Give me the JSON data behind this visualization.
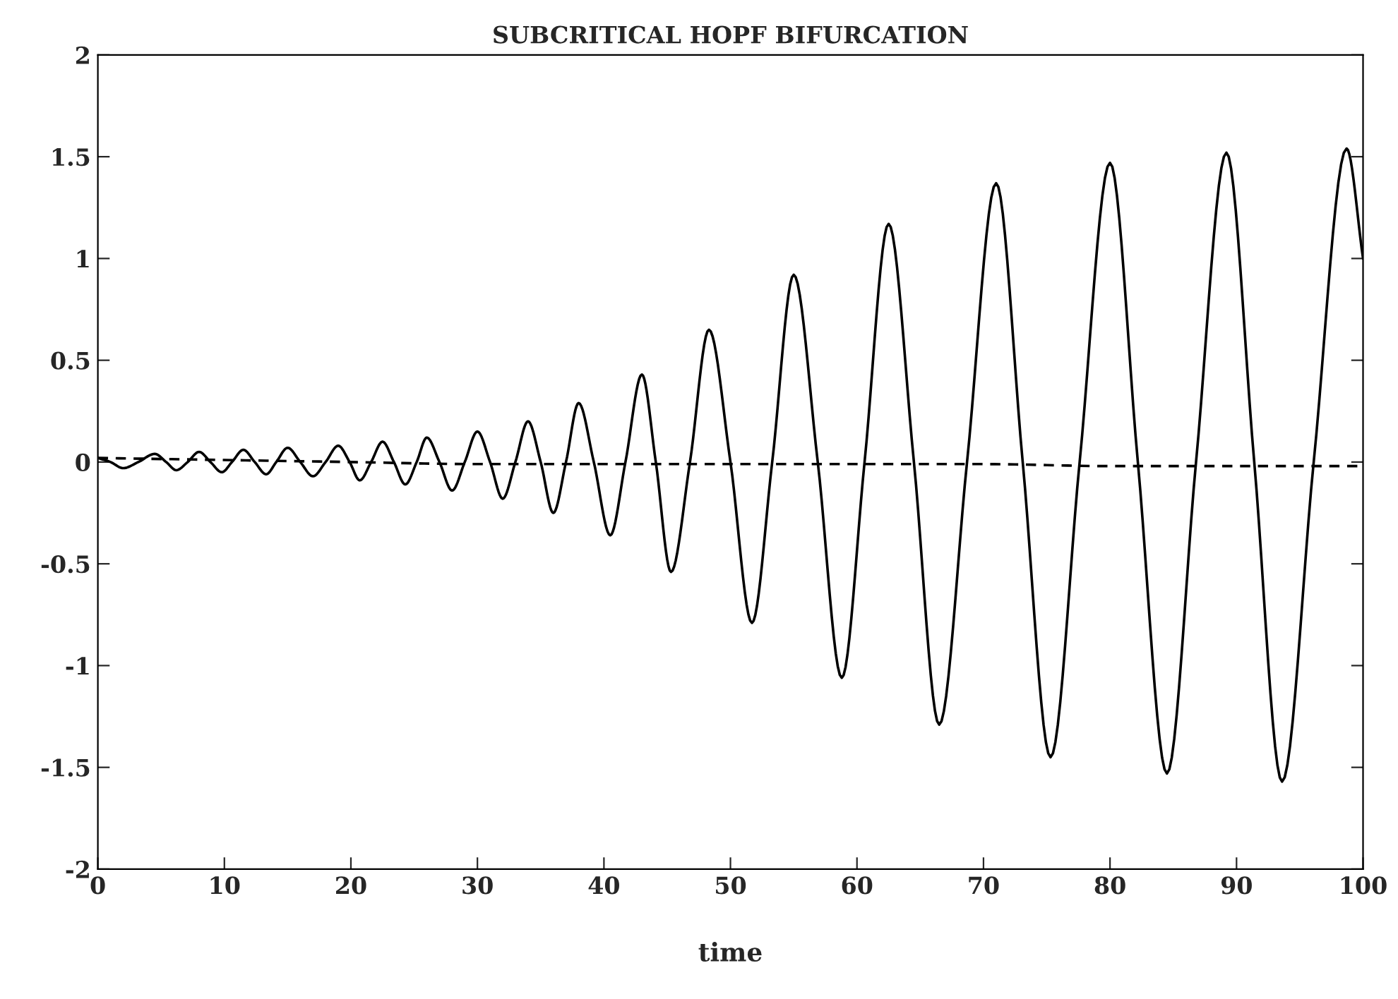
{
  "chart_data": {
    "type": "line",
    "title": "SUBCRITICAL HOPF BIFURCATION",
    "xlabel": "time",
    "xlim": [
      0,
      100
    ],
    "xticks": [
      0,
      10,
      20,
      30,
      40,
      50,
      60,
      70,
      80,
      90,
      100
    ],
    "ylim": [
      -2,
      2
    ],
    "yticks": [
      -2,
      -1.5,
      -1,
      -0.5,
      0,
      0.5,
      1,
      1.5,
      2
    ],
    "grid": false,
    "legend": false,
    "marker": "none",
    "series": [
      {
        "color": "#000000",
        "line_style": "solid",
        "x": [
          0,
          1,
          2,
          3.2,
          4.5,
          5.4,
          6.2,
          7.1,
          8,
          8.9,
          9.8,
          10.6,
          11.5,
          12.4,
          13.3,
          14.1,
          15,
          16,
          17,
          18,
          19,
          19.9,
          20.7,
          21.6,
          22.5,
          23.4,
          24.3,
          25.2,
          26,
          27,
          28,
          29,
          30,
          31,
          32,
          33,
          34,
          35,
          36,
          37,
          38,
          39.2,
          40.5,
          41.7,
          43,
          44.1,
          45.3,
          46.8,
          48.3,
          50,
          51.7,
          53.3,
          55,
          56.9,
          58.8,
          60.6,
          62.5,
          64.5,
          66.5,
          68.7,
          71,
          73.1,
          75.3,
          77.6,
          80,
          82.2,
          84.5,
          86.8,
          89.2,
          91.4,
          93.6,
          96.1,
          98.7,
          100
        ],
        "values": [
          0.02,
          0,
          -0.03,
          0,
          0.04,
          0,
          -0.04,
          0,
          0.05,
          0,
          -0.05,
          0,
          0.06,
          0,
          -0.06,
          0,
          0.07,
          0,
          -0.07,
          0,
          0.08,
          0,
          -0.09,
          0,
          0.1,
          0,
          -0.11,
          0,
          0.12,
          0,
          -0.14,
          0,
          0.15,
          0,
          -0.18,
          0,
          0.2,
          0,
          -0.25,
          0,
          0.29,
          0,
          -0.36,
          0,
          0.43,
          0,
          -0.54,
          0,
          0.65,
          0,
          -0.79,
          0,
          0.92,
          0,
          -1.06,
          0,
          1.17,
          0,
          -1.29,
          0,
          1.37,
          0,
          -1.45,
          0,
          1.47,
          0,
          -1.53,
          0,
          1.52,
          0,
          -1.57,
          0,
          1.54,
          1.0
        ]
      },
      {
        "color": "#000000",
        "line_style": "dashed",
        "x": [
          0,
          10,
          20,
          30,
          40,
          50,
          60,
          70,
          80,
          90,
          100
        ],
        "values": [
          0.02,
          0.01,
          0,
          -0.01,
          -0.01,
          -0.01,
          -0.01,
          -0.01,
          -0.02,
          -0.02,
          -0.02
        ]
      }
    ]
  }
}
